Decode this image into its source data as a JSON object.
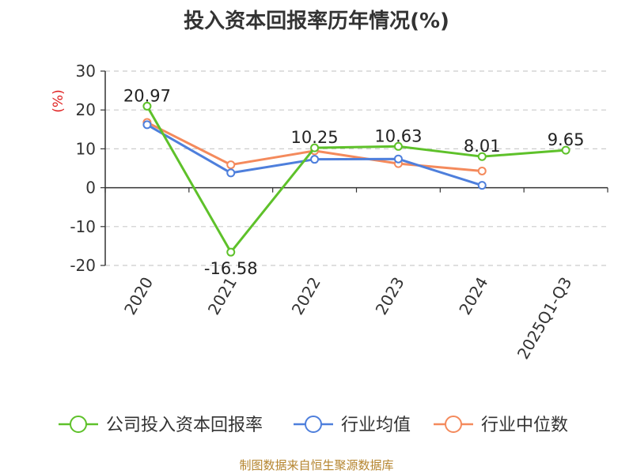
{
  "chart_data": {
    "type": "line",
    "title": "投入资本回报率历年情况(%)",
    "ylabel": "(%)",
    "xlabel": "",
    "ylim": [
      -20,
      30
    ],
    "yticks": [
      30,
      20,
      10,
      0,
      -10,
      -20
    ],
    "categories": [
      "2020",
      "2021",
      "2022",
      "2023",
      "2024",
      "2025Q1-Q3"
    ],
    "series": [
      {
        "name": "公司投入资本回报率",
        "color": "#5ec12a",
        "values": [
          20.97,
          -16.58,
          10.25,
          10.63,
          8.01,
          9.65
        ],
        "labels": [
          "20.97",
          "-16.58",
          "10.25",
          "10.63",
          "8.01",
          "9.65"
        ]
      },
      {
        "name": "行业均值",
        "color": "#4e7fdc",
        "values": [
          16.2,
          3.8,
          7.3,
          7.4,
          0.6,
          null
        ]
      },
      {
        "name": "行业中位数",
        "color": "#f48a5c",
        "values": [
          16.8,
          5.9,
          9.5,
          6.2,
          4.3,
          null
        ]
      }
    ],
    "grid": true,
    "legend_position": "bottom"
  },
  "source": "制图数据来自恒生聚源数据库"
}
